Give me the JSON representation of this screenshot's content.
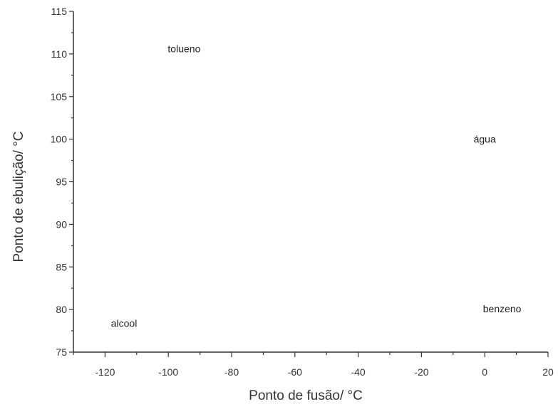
{
  "chart_data": {
    "type": "scatter",
    "title": "",
    "xlabel": "Ponto de fusão/ °C",
    "ylabel": "Ponto de ebulição/ °C",
    "xlim": [
      -130,
      20
    ],
    "ylim": [
      75,
      115
    ],
    "xticks": [
      -120,
      -100,
      -80,
      -60,
      -40,
      -20,
      0,
      20
    ],
    "yticks": [
      75,
      80,
      85,
      90,
      95,
      100,
      105,
      110,
      115
    ],
    "grid": false,
    "points": [
      {
        "label": "tolueno",
        "x": -95,
        "y": 110.6
      },
      {
        "label": "água",
        "x": 0,
        "y": 100
      },
      {
        "label": "benzeno",
        "x": 5.5,
        "y": 80.1
      },
      {
        "label": "alcool",
        "x": -114,
        "y": 78.4
      }
    ]
  }
}
